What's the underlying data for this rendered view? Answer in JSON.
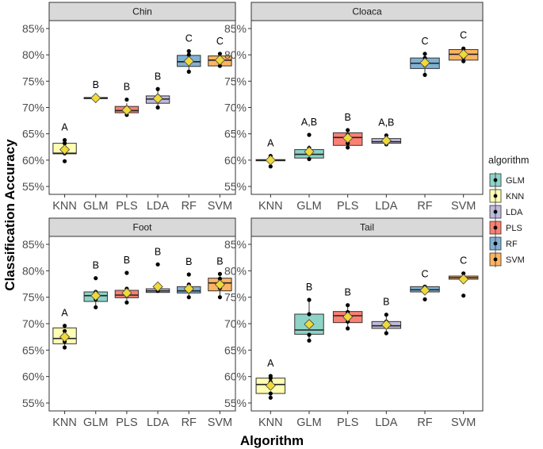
{
  "chart_data": {
    "type": "boxplot-faceted",
    "xlabel": "Algorithm",
    "ylabel": "Classification Accuracy",
    "categories": [
      "KNN",
      "GLM",
      "PLS",
      "LDA",
      "RF",
      "SVM"
    ],
    "y_ticks": [
      "55%",
      "60%",
      "65%",
      "70%",
      "75%",
      "80%",
      "85%"
    ],
    "y_tick_values": [
      55,
      60,
      65,
      70,
      75,
      80,
      85
    ],
    "ylim": [
      53.5,
      86.5
    ],
    "legend": {
      "title": "algorithm",
      "position": "right",
      "items": [
        {
          "label": "GLM",
          "color": "#8DD3C7"
        },
        {
          "label": "KNN",
          "color": "#FFFFB3"
        },
        {
          "label": "LDA",
          "color": "#BEBADA"
        },
        {
          "label": "PLS",
          "color": "#FB8072"
        },
        {
          "label": "RF",
          "color": "#80B1D3"
        },
        {
          "label": "SVM",
          "color": "#FDB462"
        }
      ]
    },
    "mean_marker_color": "#F0D93A",
    "panels": [
      {
        "title": "Chin",
        "boxes": [
          {
            "cat": "KNN",
            "q1": 61.2,
            "median": 61.3,
            "q3": 63.2,
            "lo": 61.2,
            "hi": 63.2,
            "mean": 62.0,
            "points": [
              59.8,
              61.3,
              63.2,
              63.8
            ],
            "sig": "A"
          },
          {
            "cat": "GLM",
            "q1": 71.7,
            "median": 71.8,
            "q3": 71.9,
            "lo": 71.7,
            "hi": 71.9,
            "mean": 71.8,
            "points": [
              71.8
            ],
            "sig": "B"
          },
          {
            "cat": "PLS",
            "q1": 69.0,
            "median": 69.4,
            "q3": 70.2,
            "lo": 68.5,
            "hi": 70.8,
            "mean": 69.5,
            "points": [
              68.6,
              69.2,
              70.0,
              71.5
            ],
            "sig": "B"
          },
          {
            "cat": "LDA",
            "q1": 70.8,
            "median": 71.6,
            "q3": 72.2,
            "lo": 70.0,
            "hi": 73.5,
            "mean": 71.7,
            "points": [
              70.0,
              71.3,
              72.2,
              73.5
            ],
            "sig": "B"
          },
          {
            "cat": "RF",
            "q1": 77.8,
            "median": 78.7,
            "q3": 79.9,
            "lo": 76.8,
            "hi": 80.7,
            "mean": 78.8,
            "points": [
              76.8,
              78.7,
              80.0,
              80.7
            ],
            "sig": "C"
          },
          {
            "cat": "SVM",
            "q1": 77.9,
            "median": 79.0,
            "q3": 79.8,
            "lo": 77.9,
            "hi": 80.2,
            "mean": 79.0,
            "points": [
              77.9,
              79.0,
              80.2
            ],
            "sig": "C"
          }
        ]
      },
      {
        "title": "Cloaca",
        "boxes": [
          {
            "cat": "KNN",
            "q1": 59.9,
            "median": 60.0,
            "q3": 60.1,
            "lo": 59.9,
            "hi": 60.1,
            "mean": 60.0,
            "points": [
              58.8,
              60.1,
              60.8
            ],
            "sig": "A"
          },
          {
            "cat": "GLM",
            "q1": 60.4,
            "median": 61.1,
            "q3": 62.0,
            "lo": 60.2,
            "hi": 62.8,
            "mean": 61.6,
            "points": [
              60.2,
              61.2,
              62.3,
              64.8
            ],
            "sig": "A,B"
          },
          {
            "cat": "PLS",
            "q1": 62.8,
            "median": 64.3,
            "q3": 65.2,
            "lo": 62.4,
            "hi": 65.7,
            "mean": 64.2,
            "points": [
              62.4,
              63.2,
              64.8,
              65.7
            ],
            "sig": "B"
          },
          {
            "cat": "LDA",
            "q1": 63.2,
            "median": 63.5,
            "q3": 64.1,
            "lo": 63.0,
            "hi": 64.7,
            "mean": 63.7,
            "points": [
              63.0,
              63.5,
              64.7
            ],
            "sig": "A,B"
          },
          {
            "cat": "RF",
            "q1": 77.4,
            "median": 78.4,
            "q3": 79.4,
            "lo": 76.2,
            "hi": 80.2,
            "mean": 78.5,
            "points": [
              76.2,
              78.0,
              79.4,
              80.2
            ],
            "sig": "C"
          },
          {
            "cat": "SVM",
            "q1": 79.0,
            "median": 80.1,
            "q3": 81.0,
            "lo": 78.8,
            "hi": 81.3,
            "mean": 80.1,
            "points": [
              78.8,
              79.5,
              80.6,
              81.2
            ],
            "sig": "C"
          }
        ]
      },
      {
        "title": "Foot",
        "boxes": [
          {
            "cat": "KNN",
            "q1": 66.2,
            "median": 67.2,
            "q3": 69.2,
            "lo": 65.4,
            "hi": 69.5,
            "mean": 67.5,
            "points": [
              65.5,
              66.6,
              68.6,
              69.6
            ],
            "sig": "A"
          },
          {
            "cat": "GLM",
            "q1": 74.2,
            "median": 75.3,
            "q3": 76.0,
            "lo": 73.2,
            "hi": 76.2,
            "mean": 75.3,
            "points": [
              73.1,
              74.6,
              76.0,
              78.6
            ],
            "sig": "B"
          },
          {
            "cat": "PLS",
            "q1": 74.9,
            "median": 75.4,
            "q3": 76.3,
            "lo": 74.0,
            "hi": 76.8,
            "mean": 75.8,
            "points": [
              74.0,
              75.3,
              76.6,
              79.6
            ],
            "sig": "B"
          },
          {
            "cat": "LDA",
            "q1": 75.9,
            "median": 76.2,
            "q3": 76.6,
            "lo": 75.9,
            "hi": 76.6,
            "mean": 77.0,
            "points": [
              76.2,
              76.5,
              81.2
            ],
            "sig": "B"
          },
          {
            "cat": "RF",
            "q1": 75.8,
            "median": 76.2,
            "q3": 77.0,
            "lo": 75.0,
            "hi": 77.5,
            "mean": 76.6,
            "points": [
              75.0,
              76.3,
              77.4,
              79.3
            ],
            "sig": "B"
          },
          {
            "cat": "SVM",
            "q1": 76.2,
            "median": 77.7,
            "q3": 78.6,
            "lo": 75.0,
            "hi": 79.4,
            "mean": 77.4,
            "points": [
              75.0,
              76.7,
              78.5,
              79.4
            ],
            "sig": "B"
          }
        ]
      },
      {
        "title": "Tail",
        "boxes": [
          {
            "cat": "KNN",
            "q1": 56.8,
            "median": 58.5,
            "q3": 59.7,
            "lo": 56.0,
            "hi": 60.0,
            "mean": 58.3,
            "points": [
              56.0,
              56.8,
              59.0,
              59.7,
              60.1
            ],
            "sig": "A"
          },
          {
            "cat": "GLM",
            "q1": 68.0,
            "median": 68.8,
            "q3": 71.8,
            "lo": 66.7,
            "hi": 74.5,
            "mean": 69.9,
            "points": [
              66.8,
              67.9,
              70.2,
              71.8,
              74.5
            ],
            "sig": "B"
          },
          {
            "cat": "PLS",
            "q1": 70.2,
            "median": 71.5,
            "q3": 72.3,
            "lo": 69.0,
            "hi": 73.5,
            "mean": 71.3,
            "points": [
              69.1,
              70.4,
              72.2,
              73.5
            ],
            "sig": "B"
          },
          {
            "cat": "LDA",
            "q1": 69.1,
            "median": 69.6,
            "q3": 70.4,
            "lo": 68.2,
            "hi": 71.6,
            "mean": 69.8,
            "points": [
              68.2,
              70.4,
              71.7
            ],
            "sig": "B"
          },
          {
            "cat": "RF",
            "q1": 76.0,
            "median": 76.4,
            "q3": 77.0,
            "lo": 75.8,
            "hi": 77.0,
            "mean": 76.3,
            "points": [
              74.6,
              76.4,
              77.0
            ],
            "sig": "C"
          },
          {
            "cat": "SVM",
            "q1": 78.4,
            "median": 78.7,
            "q3": 79.0,
            "lo": 78.1,
            "hi": 79.3,
            "mean": 78.4,
            "points": [
              75.3,
              78.7,
              79.5
            ],
            "sig": "C"
          }
        ]
      }
    ]
  }
}
